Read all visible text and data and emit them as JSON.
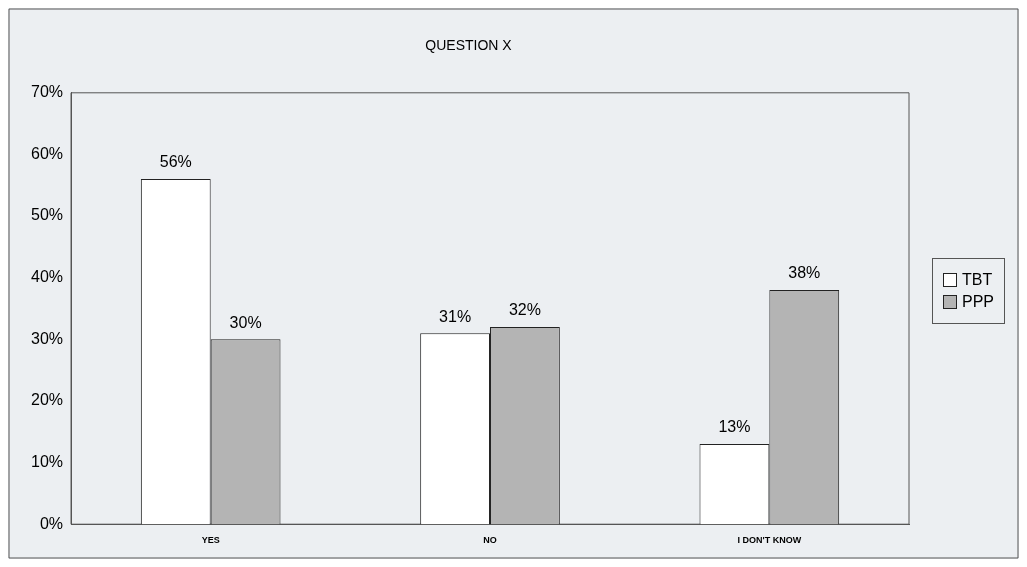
{
  "chart_data": {
    "type": "bar",
    "title": "QUESTION X",
    "categories": [
      "YES",
      "NO",
      "I DON'T KNOW"
    ],
    "series": [
      {
        "name": "TBT",
        "color": "#ffffff",
        "values": [
          56,
          31,
          13
        ]
      },
      {
        "name": "PPP",
        "color": "#b4b4b4",
        "values": [
          30,
          32,
          38
        ]
      }
    ],
    "ylim": [
      0,
      70
    ],
    "yticks": [
      {
        "value": 0,
        "label": "0%"
      },
      {
        "value": 10,
        "label": "10%"
      },
      {
        "value": 20,
        "label": "20%"
      },
      {
        "value": 30,
        "label": "30%"
      },
      {
        "value": 40,
        "label": "40%"
      },
      {
        "value": 50,
        "label": "50%"
      },
      {
        "value": 60,
        "label": "60%"
      },
      {
        "value": 70,
        "label": "70%"
      }
    ],
    "value_labels": [
      [
        "56%",
        "31%",
        "13%"
      ],
      [
        "30%",
        "32%",
        "38%"
      ]
    ],
    "legend": "right",
    "grid": false
  }
}
